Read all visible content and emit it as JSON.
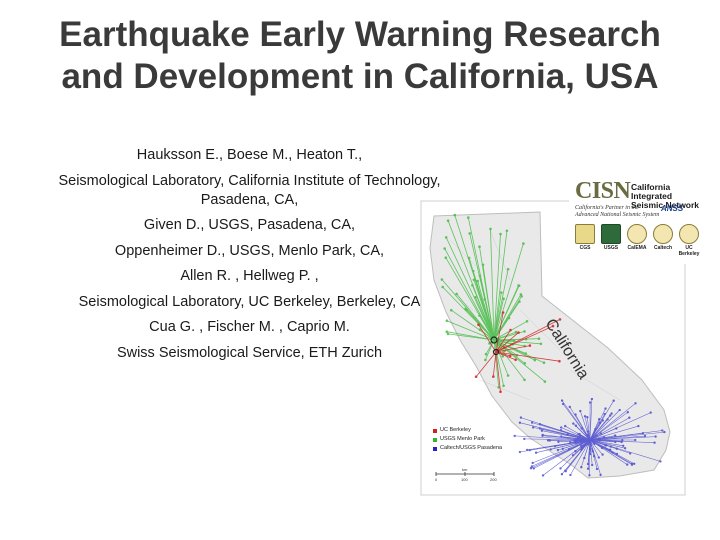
{
  "slide": {
    "title_line1": "Earthquake Early Warning Research",
    "title_line2": "and Development in California, USA",
    "authors": [
      "Hauksson E., Boese M., Heaton T.,",
      "Seismological Laboratory, California Institute of Technology,",
      "Pasadena, CA,",
      "Given D., USGS, Pasadena, CA,",
      "Oppenheimer D., USGS, Menlo Park, CA,",
      "Allen R. , Hellweg P. ,",
      "Seismological Laboratory, UC Berkeley, Berkeley, CA",
      "Cua G. , Fischer M. , Caprio M.",
      "Swiss Seismological Service, ETH Zurich"
    ]
  },
  "logo": {
    "acronym": "CISN",
    "name_line1": "California Integrated",
    "name_line2": "Seismic Network",
    "tagline_line1": "California's Partner in the",
    "tagline_line2": "Advanced National Seismic System",
    "anss": "ANSS",
    "partners": [
      "CGS",
      "USGS",
      "CalEMA",
      "Caltech",
      "UC Berkeley"
    ]
  },
  "map": {
    "state_label": "California",
    "legend": [
      {
        "label": "UC Berkeley",
        "color": "#d42020"
      },
      {
        "label": "USGS Menlo Park",
        "color": "#2fb52f"
      },
      {
        "label": "Caltech/USGS Pasadena",
        "color": "#2424c8"
      }
    ],
    "scale_unit": "km",
    "scale_ticks": [
      "0",
      "100",
      "200"
    ]
  }
}
